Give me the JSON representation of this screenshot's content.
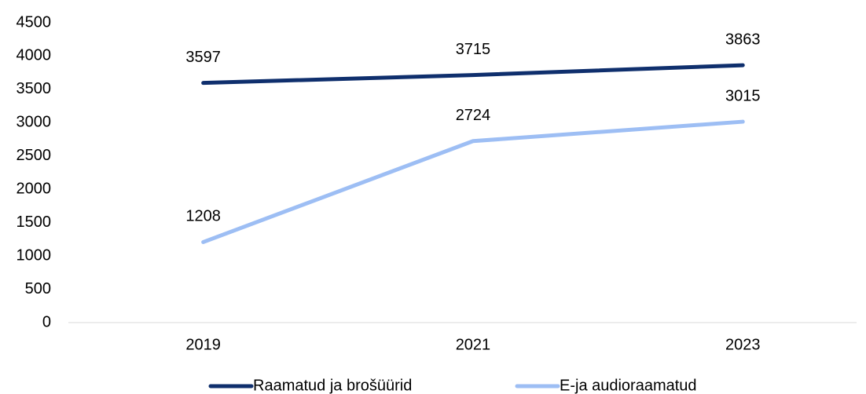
{
  "chart_data": {
    "type": "line",
    "categories": [
      "2019",
      "2021",
      "2023"
    ],
    "series": [
      {
        "name": "Raamatud ja brošüürid",
        "color": "#0f2f6d",
        "values": [
          3597,
          3715,
          3863
        ]
      },
      {
        "name": "E-ja audioraamatud",
        "color": "#9dbef4",
        "values": [
          1208,
          2724,
          3015
        ]
      }
    ],
    "ylim": [
      0,
      4500
    ],
    "yticks": [
      0,
      500,
      1000,
      1500,
      2000,
      2500,
      3000,
      3500,
      4000,
      4500
    ],
    "grid": false,
    "legend": "bottom"
  }
}
